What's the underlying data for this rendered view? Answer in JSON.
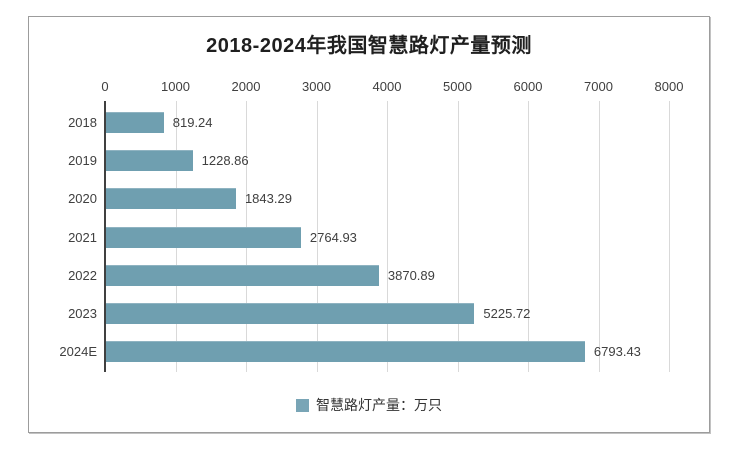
{
  "chart_data": {
    "type": "bar",
    "orientation": "horizontal",
    "title": "2018-2024年我国智慧路灯产量预测",
    "categories": [
      "2018",
      "2019",
      "2020",
      "2021",
      "2022",
      "2023",
      "2024E"
    ],
    "values": [
      819.24,
      1228.86,
      1843.29,
      2764.93,
      3870.89,
      5225.72,
      6793.43
    ],
    "value_labels": [
      "819.24",
      "1228.86",
      "1843.29",
      "2764.93",
      "3870.89",
      "5225.72",
      "6793.43"
    ],
    "x_ticks": [
      0,
      1000,
      2000,
      3000,
      4000,
      5000,
      6000,
      7000,
      8000
    ],
    "x_tick_labels": [
      "0",
      "1000",
      "2000",
      "3000",
      "4000",
      "5000",
      "6000",
      "7000",
      "8000"
    ],
    "xlim": [
      0,
      8000
    ],
    "xlabel": "",
    "ylabel": "",
    "grid": "vertical",
    "legend_position": "bottom",
    "legend": [
      "智慧路灯产量：万只"
    ],
    "colors": {
      "bar": "#6f9fb0",
      "legend_marker": "#79a5b6",
      "gridline": "#d9d9d9",
      "axis_line": "#404040",
      "text": "#404040",
      "title_text": "#1f1f1f",
      "frame_border": "#9c9c9c",
      "background": "#ffffff"
    }
  }
}
